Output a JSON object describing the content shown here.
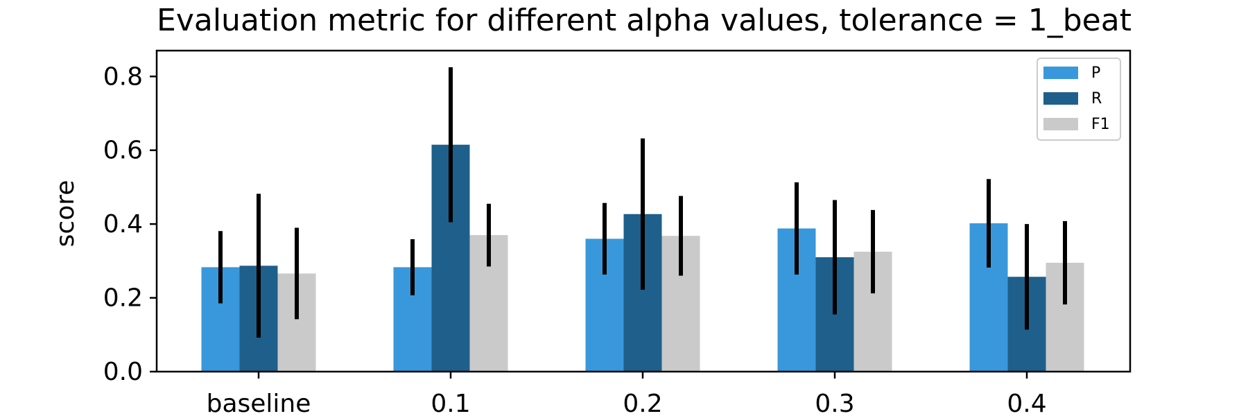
{
  "chart_data": {
    "type": "bar",
    "title": "Evaluation metric for different alpha values, tolerance = 1_beat",
    "xlabel": "",
    "ylabel": "score",
    "categories": [
      "baseline",
      "0.1",
      "0.2",
      "0.3",
      "0.4"
    ],
    "ylim": [
      0,
      0.87
    ],
    "yticks": [
      0.0,
      0.2,
      0.4,
      0.6,
      0.8
    ],
    "ytick_labels": [
      "0.0",
      "0.2",
      "0.4",
      "0.6",
      "0.8"
    ],
    "grid": false,
    "legend_position": "top-right",
    "series": [
      {
        "name": "P",
        "color": "#3898db",
        "values": [
          0.283,
          0.283,
          0.36,
          0.388,
          0.402
        ],
        "error": [
          0.098,
          0.076,
          0.097,
          0.125,
          0.12
        ]
      },
      {
        "name": "R",
        "color": "#1f5f8b",
        "values": [
          0.287,
          0.615,
          0.427,
          0.31,
          0.257
        ],
        "error": [
          0.195,
          0.21,
          0.205,
          0.155,
          0.143
        ]
      },
      {
        "name": "F1",
        "color": "#cacaca",
        "values": [
          0.266,
          0.37,
          0.368,
          0.325,
          0.295
        ],
        "error": [
          0.124,
          0.085,
          0.108,
          0.113,
          0.113
        ]
      }
    ],
    "error_bar_color": "#000000"
  }
}
